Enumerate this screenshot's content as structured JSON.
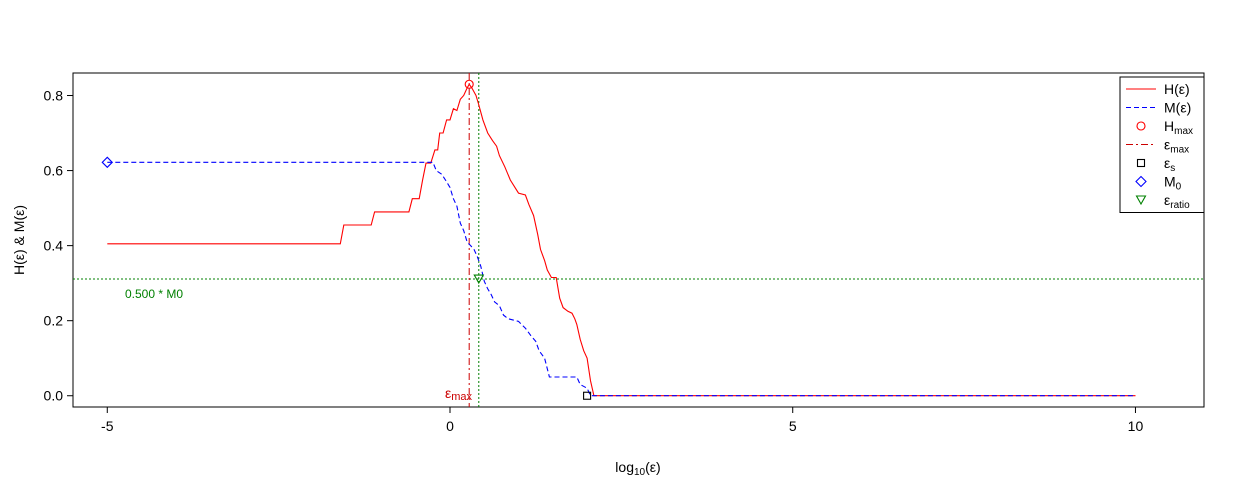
{
  "chart_data": {
    "type": "line",
    "xlabel": "log10(ε)",
    "ylabel": "H(ε) & M(ε)",
    "xlim": [
      -5.5,
      11.0
    ],
    "ylim": [
      -0.03,
      0.86
    ],
    "x_ticks": [
      -5,
      0,
      5,
      10
    ],
    "y_ticks": [
      0.0,
      0.2,
      0.4,
      0.6,
      0.8
    ],
    "x_tick_labels": [
      "-5",
      "0",
      "5",
      "10"
    ],
    "y_tick_labels": [
      "0.0",
      "0.2",
      "0.4",
      "0.6",
      "0.8"
    ],
    "colors": {
      "H": "#ff0000",
      "M": "#0000ff",
      "ratio": "#008000",
      "epsmax": "#cc0000"
    },
    "series": [
      {
        "name": "H(ε)",
        "style": "solid",
        "color": "#ff0000",
        "points": [
          [
            -5.0,
            0.405
          ],
          [
            -1.6,
            0.405
          ],
          [
            -1.55,
            0.455
          ],
          [
            -1.15,
            0.455
          ],
          [
            -1.1,
            0.49
          ],
          [
            -0.6,
            0.49
          ],
          [
            -0.55,
            0.525
          ],
          [
            -0.45,
            0.525
          ],
          [
            -0.4,
            0.575
          ],
          [
            -0.35,
            0.62
          ],
          [
            -0.28,
            0.62
          ],
          [
            -0.22,
            0.655
          ],
          [
            -0.18,
            0.655
          ],
          [
            -0.15,
            0.7
          ],
          [
            -0.1,
            0.7
          ],
          [
            -0.05,
            0.735
          ],
          [
            0.0,
            0.735
          ],
          [
            0.05,
            0.765
          ],
          [
            0.1,
            0.76
          ],
          [
            0.15,
            0.79
          ],
          [
            0.2,
            0.8
          ],
          [
            0.25,
            0.82
          ],
          [
            0.28,
            0.83
          ],
          [
            0.32,
            0.82
          ],
          [
            0.38,
            0.8
          ],
          [
            0.42,
            0.775
          ],
          [
            0.48,
            0.735
          ],
          [
            0.55,
            0.7
          ],
          [
            0.62,
            0.68
          ],
          [
            0.68,
            0.665
          ],
          [
            0.72,
            0.64
          ],
          [
            0.8,
            0.61
          ],
          [
            0.88,
            0.575
          ],
          [
            1.0,
            0.54
          ],
          [
            1.1,
            0.535
          ],
          [
            1.15,
            0.51
          ],
          [
            1.22,
            0.48
          ],
          [
            1.28,
            0.43
          ],
          [
            1.32,
            0.39
          ],
          [
            1.38,
            0.36
          ],
          [
            1.42,
            0.335
          ],
          [
            1.48,
            0.315
          ],
          [
            1.55,
            0.315
          ],
          [
            1.6,
            0.26
          ],
          [
            1.65,
            0.235
          ],
          [
            1.72,
            0.225
          ],
          [
            1.78,
            0.22
          ],
          [
            1.82,
            0.205
          ],
          [
            1.85,
            0.19
          ],
          [
            1.9,
            0.15
          ],
          [
            1.95,
            0.12
          ],
          [
            2.0,
            0.1
          ],
          [
            2.05,
            0.04
          ],
          [
            2.1,
            0.0
          ],
          [
            10.0,
            0.0
          ]
        ]
      },
      {
        "name": "M(ε)",
        "style": "dashed",
        "color": "#0000ff",
        "points": [
          [
            -5.0,
            0.622
          ],
          [
            -0.25,
            0.622
          ],
          [
            -0.2,
            0.6
          ],
          [
            -0.12,
            0.59
          ],
          [
            -0.05,
            0.57
          ],
          [
            0.0,
            0.555
          ],
          [
            0.05,
            0.525
          ],
          [
            0.1,
            0.505
          ],
          [
            0.15,
            0.46
          ],
          [
            0.2,
            0.44
          ],
          [
            0.25,
            0.41
          ],
          [
            0.3,
            0.4
          ],
          [
            0.35,
            0.39
          ],
          [
            0.4,
            0.37
          ],
          [
            0.45,
            0.345
          ],
          [
            0.5,
            0.305
          ],
          [
            0.55,
            0.285
          ],
          [
            0.6,
            0.27
          ],
          [
            0.65,
            0.25
          ],
          [
            0.72,
            0.24
          ],
          [
            0.78,
            0.215
          ],
          [
            0.85,
            0.205
          ],
          [
            1.0,
            0.198
          ],
          [
            1.1,
            0.18
          ],
          [
            1.18,
            0.16
          ],
          [
            1.25,
            0.145
          ],
          [
            1.3,
            0.12
          ],
          [
            1.38,
            0.1
          ],
          [
            1.45,
            0.05
          ],
          [
            1.85,
            0.05
          ],
          [
            1.9,
            0.03
          ],
          [
            2.0,
            0.02
          ],
          [
            2.05,
            0.0
          ],
          [
            10.0,
            0.0
          ]
        ]
      }
    ],
    "reference_lines": [
      {
        "type": "hline",
        "y": 0.311,
        "color": "#008000",
        "style": "dotted",
        "label": "0.500 * M0"
      },
      {
        "type": "vline",
        "x": 0.28,
        "color": "#cc0000",
        "style": "dotdash",
        "label": "εmax"
      },
      {
        "type": "vline",
        "x": 0.42,
        "color": "#008000",
        "style": "dotted"
      }
    ],
    "markers": [
      {
        "name": "Hmax",
        "shape": "circle",
        "x": 0.28,
        "y": 0.83,
        "color": "#ff0000"
      },
      {
        "name": "εs",
        "shape": "square",
        "x": 2.0,
        "y": 0.0,
        "color": "#000000"
      },
      {
        "name": "M0",
        "shape": "diamond",
        "x": -5.0,
        "y": 0.622,
        "color": "#0000ff"
      },
      {
        "name": "εratio",
        "shape": "triangle-down",
        "x": 0.42,
        "y": 0.311,
        "color": "#008000"
      }
    ],
    "legend": {
      "position": "top-right",
      "entries": [
        {
          "main": "H(ε)",
          "sub": "",
          "kind": "line",
          "style": "solid",
          "color": "#ff0000"
        },
        {
          "main": "M(ε)",
          "sub": "",
          "kind": "line",
          "style": "dashed",
          "color": "#0000ff"
        },
        {
          "main": "H",
          "sub": "max",
          "kind": "point",
          "shape": "circle",
          "color": "#ff0000"
        },
        {
          "main": "ε",
          "sub": "max",
          "kind": "line",
          "style": "dotdash",
          "color": "#cc0000"
        },
        {
          "main": "ε",
          "sub": "s",
          "kind": "point",
          "shape": "square",
          "color": "#000000"
        },
        {
          "main": "M",
          "sub": "0",
          "kind": "point",
          "shape": "diamond",
          "color": "#0000ff"
        },
        {
          "main": "ε",
          "sub": "ratio",
          "kind": "point",
          "shape": "triangle-down",
          "color": "#008000"
        }
      ]
    }
  }
}
